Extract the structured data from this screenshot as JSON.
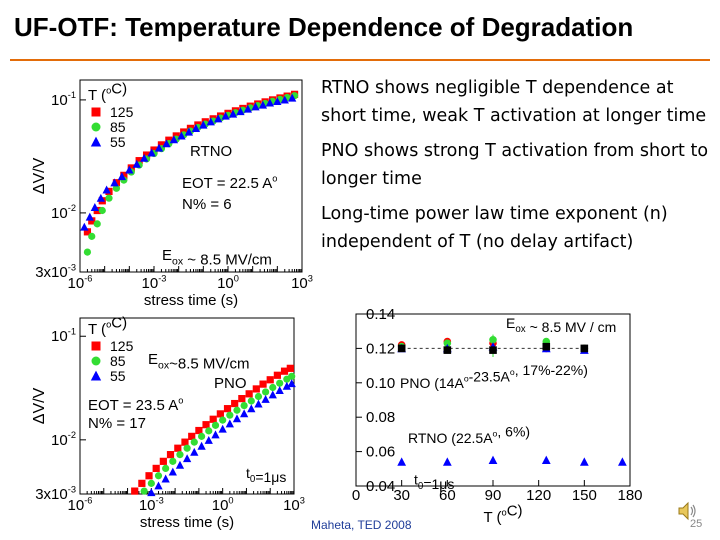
{
  "slide": {
    "title": "UF-OTF: Temperature Dependence of Degradation",
    "bullets": [
      "RTNO shows negligible T dependence at short time, weak T activation at longer time",
      "PNO shows strong T activation from short to longer time",
      "Long-time power law time exponent (n) independent of T (no delay artifact)"
    ],
    "citation": "Maheta, TED 2008",
    "slide_number": "25",
    "speaker_icon": "speaker-icon"
  },
  "colors": {
    "red": "#ff0000",
    "green": "#33dd33",
    "blue": "#0000ff",
    "black": "#000000",
    "rule": "#e36c09"
  },
  "chart_data": [
    {
      "type": "scatter",
      "name": "RTNO",
      "xlabel": "stress time (s)",
      "ylabel": "ΔV/V",
      "xscale": "log",
      "yscale": "log",
      "xlim": [
        1e-06,
        1000
      ],
      "ylim": [
        0.003,
        0.15
      ],
      "x_ticks": [
        {
          "v": 1e-06,
          "m": "10",
          "e": "-6"
        },
        {
          "v": 0.001,
          "m": "10",
          "e": "-3"
        },
        {
          "v": 1,
          "m": "10",
          "e": "0"
        },
        {
          "v": 1000,
          "m": "10",
          "e": "3"
        }
      ],
      "y_ticks": [
        {
          "v": 0.1,
          "m": "10",
          "e": "-1"
        },
        {
          "v": 0.01,
          "m": "10",
          "e": "-2"
        },
        {
          "v": 0.003,
          "m": "3x10",
          "e": "-3"
        }
      ],
      "legend_title": "T (°C)",
      "legend": [
        "125",
        "85",
        "55"
      ],
      "annotations": {
        "label": "RTNO",
        "eot": "EOT = 22.5 A°",
        "npct": "N% = 6",
        "eox": "E_ox ~ 8.5 MV/cm"
      },
      "series": [
        {
          "name": "125",
          "color": "red",
          "marker": "square",
          "points": [
            [
              2e-06,
              0.0068
            ],
            [
              3e-06,
              0.0085
            ],
            [
              5e-06,
              0.0105
            ],
            [
              8e-06,
              0.0128
            ],
            [
              1.5e-05,
              0.0155
            ],
            [
              3e-05,
              0.0185
            ],
            [
              6e-05,
              0.0215
            ],
            [
              0.00012,
              0.025
            ],
            [
              0.00025,
              0.029
            ],
            [
              0.0005,
              0.0325
            ],
            [
              0.001,
              0.036
            ],
            [
              0.002,
              0.04
            ],
            [
              0.004,
              0.044
            ],
            [
              0.008,
              0.048
            ],
            [
              0.016,
              0.052
            ],
            [
              0.03,
              0.056
            ],
            [
              0.06,
              0.06
            ],
            [
              0.12,
              0.064
            ],
            [
              0.25,
              0.068
            ],
            [
              0.5,
              0.072
            ],
            [
              1,
              0.076
            ],
            [
              2,
              0.08
            ],
            [
              4,
              0.084
            ],
            [
              8,
              0.088
            ],
            [
              16,
              0.092
            ],
            [
              32,
              0.096
            ],
            [
              64,
              0.1
            ],
            [
              128,
              0.104
            ],
            [
              250,
              0.108
            ],
            [
              500,
              0.112
            ]
          ]
        },
        {
          "name": "85",
          "color": "green",
          "marker": "circle",
          "points": [
            [
              2e-06,
              0.0045
            ],
            [
              3e-06,
              0.0062
            ],
            [
              5e-06,
              0.008
            ],
            [
              8e-06,
              0.0105
            ],
            [
              1.5e-05,
              0.0135
            ],
            [
              3e-05,
              0.0165
            ],
            [
              6e-05,
              0.0195
            ],
            [
              0.00012,
              0.023
            ],
            [
              0.00025,
              0.0265
            ],
            [
              0.0005,
              0.03
            ],
            [
              0.001,
              0.0335
            ],
            [
              0.002,
              0.037
            ],
            [
              0.004,
              0.041
            ],
            [
              0.008,
              0.045
            ],
            [
              0.016,
              0.049
            ],
            [
              0.03,
              0.053
            ],
            [
              0.06,
              0.057
            ],
            [
              0.12,
              0.061
            ],
            [
              0.25,
              0.065
            ],
            [
              0.5,
              0.069
            ],
            [
              1,
              0.073
            ],
            [
              2,
              0.077
            ],
            [
              4,
              0.081
            ],
            [
              8,
              0.085
            ],
            [
              16,
              0.089
            ],
            [
              32,
              0.093
            ],
            [
              64,
              0.097
            ],
            [
              128,
              0.101
            ],
            [
              250,
              0.105
            ],
            [
              500,
              0.109
            ]
          ]
        },
        {
          "name": "55",
          "color": "blue",
          "marker": "triangle",
          "points": [
            [
              1.5e-06,
              0.0075
            ],
            [
              2.5e-06,
              0.0092
            ],
            [
              4e-06,
              0.0112
            ],
            [
              7e-06,
              0.0135
            ],
            [
              1.2e-05,
              0.016
            ],
            [
              2.5e-05,
              0.0185
            ],
            [
              5e-05,
              0.021
            ],
            [
              0.0001,
              0.024
            ],
            [
              0.0002,
              0.027
            ],
            [
              0.0004,
              0.0305
            ],
            [
              0.0008,
              0.034
            ],
            [
              0.0016,
              0.0375
            ],
            [
              0.0032,
              0.041
            ],
            [
              0.0064,
              0.0445
            ],
            [
              0.013,
              0.048
            ],
            [
              0.026,
              0.052
            ],
            [
              0.05,
              0.056
            ],
            [
              0.1,
              0.06
            ],
            [
              0.2,
              0.064
            ],
            [
              0.4,
              0.068
            ],
            [
              0.8,
              0.072
            ],
            [
              1.6,
              0.075
            ],
            [
              3.2,
              0.079
            ],
            [
              6.4,
              0.083
            ],
            [
              13,
              0.087
            ],
            [
              26,
              0.09
            ],
            [
              50,
              0.094
            ],
            [
              100,
              0.097
            ],
            [
              200,
              0.1
            ],
            [
              400,
              0.104
            ]
          ]
        }
      ]
    },
    {
      "type": "scatter",
      "name": "PNO",
      "xlabel": "stress time (s)",
      "ylabel": "ΔV/V",
      "xscale": "log",
      "yscale": "log",
      "xlim": [
        1e-06,
        1000
      ],
      "ylim": [
        0.003,
        0.15
      ],
      "x_ticks": [
        {
          "v": 1e-06,
          "m": "10",
          "e": "-6"
        },
        {
          "v": 0.001,
          "m": "10",
          "e": "-3"
        },
        {
          "v": 1,
          "m": "10",
          "e": "0"
        },
        {
          "v": 1000,
          "m": "10",
          "e": "3"
        }
      ],
      "y_ticks": [
        {
          "v": 0.1,
          "m": "10",
          "e": "-1"
        },
        {
          "v": 0.01,
          "m": "10",
          "e": "-2"
        },
        {
          "v": 0.003,
          "m": "3x10",
          "e": "-3"
        }
      ],
      "legend_title": "T (°C)",
      "legend": [
        "125",
        "85",
        "55"
      ],
      "annotations": {
        "label": "PNO",
        "eot": "EOT = 23.5 A°",
        "npct": "N% = 17",
        "eox": "E_ox~8.5 MV/cm",
        "t0": "t_0=1μs"
      },
      "series": [
        {
          "name": "125",
          "color": "red",
          "marker": "square",
          "points": [
            [
              0.0002,
              0.0032
            ],
            [
              0.0004,
              0.0038
            ],
            [
              0.0008,
              0.0045
            ],
            [
              0.0016,
              0.0053
            ],
            [
              0.0032,
              0.0062
            ],
            [
              0.0064,
              0.0072
            ],
            [
              0.013,
              0.0083
            ],
            [
              0.026,
              0.0095
            ],
            [
              0.05,
              0.0108
            ],
            [
              0.1,
              0.0123
            ],
            [
              0.2,
              0.014
            ],
            [
              0.4,
              0.0158
            ],
            [
              0.8,
              0.0178
            ],
            [
              1.6,
              0.02
            ],
            [
              3.2,
              0.0224
            ],
            [
              6.4,
              0.025
            ],
            [
              13,
              0.0278
            ],
            [
              26,
              0.031
            ],
            [
              50,
              0.0345
            ],
            [
              100,
              0.038
            ],
            [
              200,
              0.042
            ],
            [
              400,
              0.046
            ],
            [
              700,
              0.049
            ]
          ]
        },
        {
          "name": "85",
          "color": "green",
          "marker": "circle",
          "points": [
            [
              0.0005,
              0.0032
            ],
            [
              0.001,
              0.0038
            ],
            [
              0.002,
              0.0045
            ],
            [
              0.004,
              0.0053
            ],
            [
              0.008,
              0.0062
            ],
            [
              0.016,
              0.0072
            ],
            [
              0.032,
              0.0083
            ],
            [
              0.064,
              0.0095
            ],
            [
              0.13,
              0.0108
            ],
            [
              0.26,
              0.0122
            ],
            [
              0.5,
              0.0138
            ],
            [
              1,
              0.0155
            ],
            [
              2,
              0.0173
            ],
            [
              4,
              0.0193
            ],
            [
              8,
              0.0214
            ],
            [
              16,
              0.0237
            ],
            [
              32,
              0.0262
            ],
            [
              64,
              0.029
            ],
            [
              128,
              0.032
            ],
            [
              250,
              0.0352
            ],
            [
              500,
              0.0385
            ],
            [
              800,
              0.041
            ]
          ]
        },
        {
          "name": "55",
          "color": "blue",
          "marker": "triangle",
          "points": [
            [
              0.001,
              0.0031
            ],
            [
              0.002,
              0.0036
            ],
            [
              0.004,
              0.0042
            ],
            [
              0.008,
              0.0049
            ],
            [
              0.016,
              0.0057
            ],
            [
              0.032,
              0.0066
            ],
            [
              0.064,
              0.0076
            ],
            [
              0.13,
              0.0087
            ],
            [
              0.26,
              0.0099
            ],
            [
              0.5,
              0.0112
            ],
            [
              1,
              0.0127
            ],
            [
              2,
              0.0143
            ],
            [
              4,
              0.016
            ],
            [
              8,
              0.0179
            ],
            [
              16,
              0.02
            ],
            [
              32,
              0.0222
            ],
            [
              64,
              0.0246
            ],
            [
              128,
              0.0272
            ],
            [
              250,
              0.03
            ],
            [
              500,
              0.033
            ],
            [
              800,
              0.035
            ]
          ]
        }
      ]
    },
    {
      "type": "scatter",
      "name": "n vs T",
      "xlabel": "T (°C)",
      "ylabel": "",
      "xlim": [
        0,
        180
      ],
      "ylim": [
        0.04,
        0.14
      ],
      "x_ticks": [
        0,
        30,
        60,
        90,
        120,
        150,
        180
      ],
      "y_ticks": [
        "0.04",
        "0.06",
        "0.08",
        "0.10",
        "0.12",
        "0.14"
      ],
      "annotations": {
        "eox": "E_ox ~ 8.5 MV / cm",
        "pno": "PNO (14A°-23.5A°, 17%-22%)",
        "rtno": "RTNO (22.5A°, 6%)",
        "t0": "t_0=1μs"
      },
      "series": [
        {
          "color": "red",
          "marker": "circle",
          "points": [
            [
              30,
              0.122
            ],
            [
              60,
              0.124
            ],
            [
              90,
              0.123
            ],
            [
              125,
              0.12
            ],
            [
              150,
              0.12
            ]
          ]
        },
        {
          "color": "green",
          "marker": "circle",
          "points": [
            [
              30,
              0.121
            ],
            [
              60,
              0.123
            ],
            [
              90,
              0.125
            ],
            [
              125,
              0.124
            ],
            [
              150,
              0.12
            ]
          ]
        },
        {
          "color": "blue",
          "marker": "triangle",
          "points": [
            [
              30,
              0.12
            ],
            [
              60,
              0.12
            ],
            [
              90,
              0.121
            ],
            [
              125,
              0.12
            ],
            [
              150,
              0.119
            ]
          ]
        },
        {
          "color": "black",
          "marker": "square",
          "points": [
            [
              30,
              0.12
            ],
            [
              60,
              0.119
            ],
            [
              90,
              0.119
            ],
            [
              125,
              0.121
            ],
            [
              150,
              0.12
            ]
          ]
        },
        {
          "color": "blue",
          "marker": "triangle",
          "points": [
            [
              30,
              0.054
            ],
            [
              60,
              0.054
            ],
            [
              90,
              0.055
            ],
            [
              125,
              0.055
            ],
            [
              150,
              0.054
            ],
            [
              175,
              0.054
            ]
          ]
        }
      ]
    }
  ]
}
